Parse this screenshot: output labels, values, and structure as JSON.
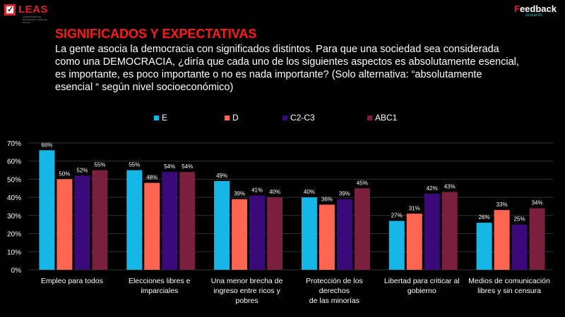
{
  "logos": {
    "left": {
      "name": "LEAS",
      "subtitle": "LABORATORIO DE ENCUESTAS Y ANÁLISIS SOCIAL"
    },
    "right": {
      "name_accent": "F",
      "name_rest": "eedback",
      "subtitle": "research"
    }
  },
  "header": {
    "title": "SIGNIFICADOS Y EXPECTATIVAS",
    "subtitle": "La gente asocia la democracia con significados distintos. Para que una sociedad sea considerada como una DEMOCRACIA, ¿diría que cada uno de los siguientes aspectos es absolutamente esencial, es importante, es poco importante o no es nada importante? (Solo alternativa: “absolutamente esencial “ según nivel socioeconómico)"
  },
  "chart_data": {
    "type": "bar",
    "title": "SIGNIFICADOS Y EXPECTATIVAS",
    "xlabel": "",
    "ylabel": "",
    "ylim": [
      0,
      70
    ],
    "yticks": [
      "0%",
      "10%",
      "20%",
      "30%",
      "40%",
      "50%",
      "60%",
      "70%"
    ],
    "grid": true,
    "legend_position": "top",
    "categories": [
      "Empleo para todos",
      "Elecciones libres e imparciales",
      "Una menor brecha de ingreso entre ricos y pobres",
      "Protección de los derechos de las minorías",
      "Libertad para criticar al gobierno",
      "Medios de comunicación libres y sin censura"
    ],
    "category_lines": [
      [
        "Empleo para todos"
      ],
      [
        "Elecciones libres e",
        "imparciales"
      ],
      [
        "Una menor brecha de",
        "ingreso entre ricos y",
        "pobres"
      ],
      [
        "Protección de los derechos",
        "de las minorías"
      ],
      [
        "Libertad para criticar al",
        "gobierno"
      ],
      [
        "Medios de comunicación",
        "libres y sin censura"
      ]
    ],
    "series": [
      {
        "name": "E",
        "color": "#16b6e6",
        "values": [
          66,
          55,
          49,
          40,
          27,
          26
        ]
      },
      {
        "name": "D",
        "color": "#ff6652",
        "values": [
          50,
          48,
          39,
          36,
          31,
          33
        ]
      },
      {
        "name": "C2-C3",
        "color": "#3a0a7a",
        "values": [
          52,
          54,
          41,
          39,
          42,
          25
        ]
      },
      {
        "name": "ABC1",
        "color": "#7a1f3d",
        "values": [
          55,
          54,
          40,
          45,
          43,
          34
        ]
      }
    ]
  }
}
